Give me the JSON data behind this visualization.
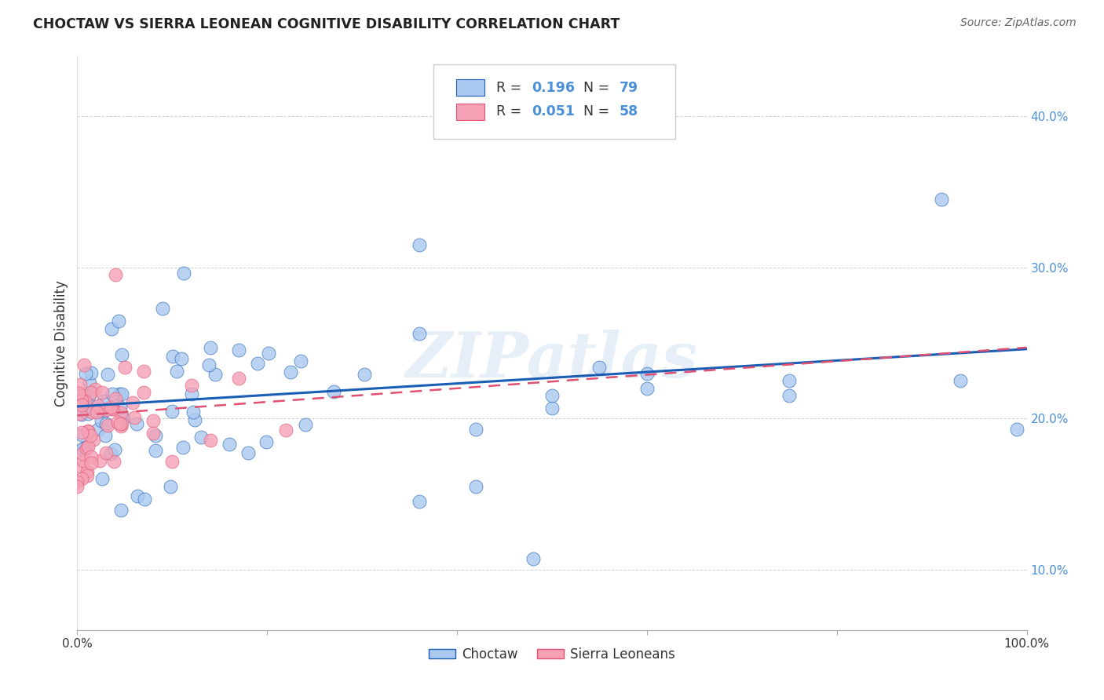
{
  "title": "CHOCTAW VS SIERRA LEONEAN COGNITIVE DISABILITY CORRELATION CHART",
  "source": "Source: ZipAtlas.com",
  "ylabel": "Cognitive Disability",
  "ytick_labels": [
    "10.0%",
    "20.0%",
    "30.0%",
    "40.0%"
  ],
  "ytick_values": [
    0.1,
    0.2,
    0.3,
    0.4
  ],
  "xlim": [
    0.0,
    1.0
  ],
  "ylim": [
    0.06,
    0.44
  ],
  "watermark": "ZIPatlas",
  "legend_R1": "0.196",
  "legend_N1": "79",
  "legend_R2": "0.051",
  "legend_N2": "58",
  "blue_color": "#aac8f0",
  "pink_color": "#f5a0b5",
  "line_blue": "#1a5db5",
  "line_pink": "#e05070",
  "text_blue": "#4a90d9",
  "grid_color": "#cccccc",
  "blue_line_intercept": 0.208,
  "blue_line_slope": 0.038,
  "pink_line_intercept": 0.202,
  "pink_line_slope": 0.045
}
